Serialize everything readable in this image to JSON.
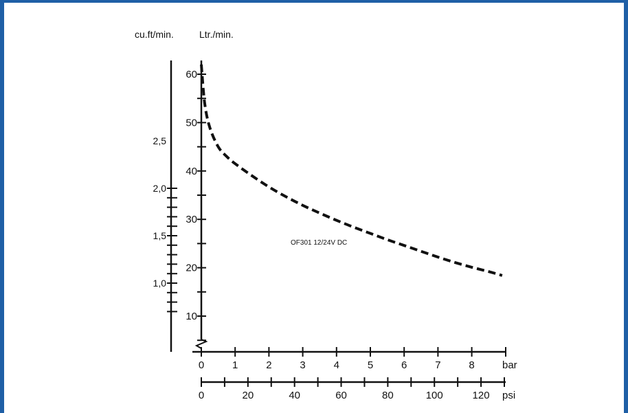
{
  "colors": {
    "frame": "#1f5fa6",
    "ink": "#111111"
  },
  "chart_data": {
    "type": "line",
    "axes": {
      "left_outer_label": "cu.ft/min.",
      "left_inner_label": "Ltr./min.",
      "bottom_unit_bar": "bar",
      "bottom_unit_psi": "psi"
    },
    "cuft_ticks": [
      "2,5",
      "2,0",
      "1,5",
      "1,0"
    ],
    "cuft_values": [
      2.5,
      2.0,
      1.5,
      1.0
    ],
    "ltr_ticks": [
      "60",
      "50",
      "40",
      "30",
      "20",
      "10"
    ],
    "ltr_values": [
      60,
      50,
      40,
      30,
      20,
      10
    ],
    "bar_ticks": [
      "0",
      "1",
      "2",
      "3",
      "4",
      "5",
      "6",
      "7",
      "8"
    ],
    "psi_ticks": [
      "0",
      "20",
      "40",
      "60",
      "80",
      "100",
      "120"
    ],
    "xlim_bar": [
      0,
      9
    ],
    "ylim_ltr": [
      5,
      63
    ],
    "series": [
      {
        "name": "OF301 12/24V DC",
        "x": [
          0,
          0.1,
          0.25,
          0.5,
          0.75,
          1,
          1.5,
          2,
          2.5,
          3,
          3.5,
          4,
          4.5,
          5,
          5.5,
          6,
          6.5,
          7,
          7.5,
          8,
          8.5,
          8.9
        ],
        "y": [
          62,
          54,
          49,
          45,
          43,
          41.5,
          39,
          36.7,
          34.7,
          32.9,
          31.3,
          29.8,
          28.4,
          27.1,
          25.8,
          24.6,
          23.4,
          22.2,
          21.1,
          20.1,
          19.2,
          18.4
        ]
      }
    ]
  }
}
